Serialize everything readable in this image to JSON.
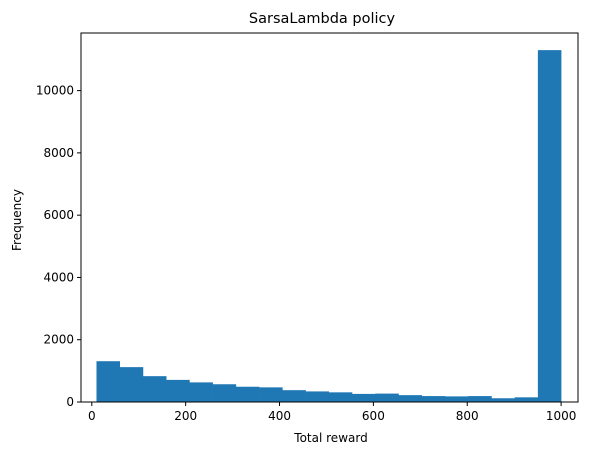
{
  "chart_data": {
    "type": "bar",
    "title": "SarsaLambda policy",
    "xlabel": "Total reward",
    "ylabel": "Frequency",
    "xlim": [
      -23,
      1036
    ],
    "ylim": [
      0,
      11850
    ],
    "xticks": [
      0,
      200,
      400,
      600,
      800,
      1000
    ],
    "yticks": [
      0,
      2000,
      4000,
      6000,
      8000,
      10000
    ],
    "bin_edges": [
      10,
      59.5,
      109,
      158.5,
      208,
      257.5,
      307,
      356.5,
      406,
      455.5,
      505,
      554.5,
      604,
      653.5,
      703,
      752.5,
      802,
      851.5,
      901,
      950.5,
      1000
    ],
    "values": [
      1310,
      1120,
      830,
      710,
      630,
      570,
      490,
      470,
      380,
      340,
      310,
      260,
      270,
      220,
      190,
      180,
      190,
      120,
      150,
      11300
    ],
    "bar_color": "#1f77b4",
    "grid": false
  }
}
